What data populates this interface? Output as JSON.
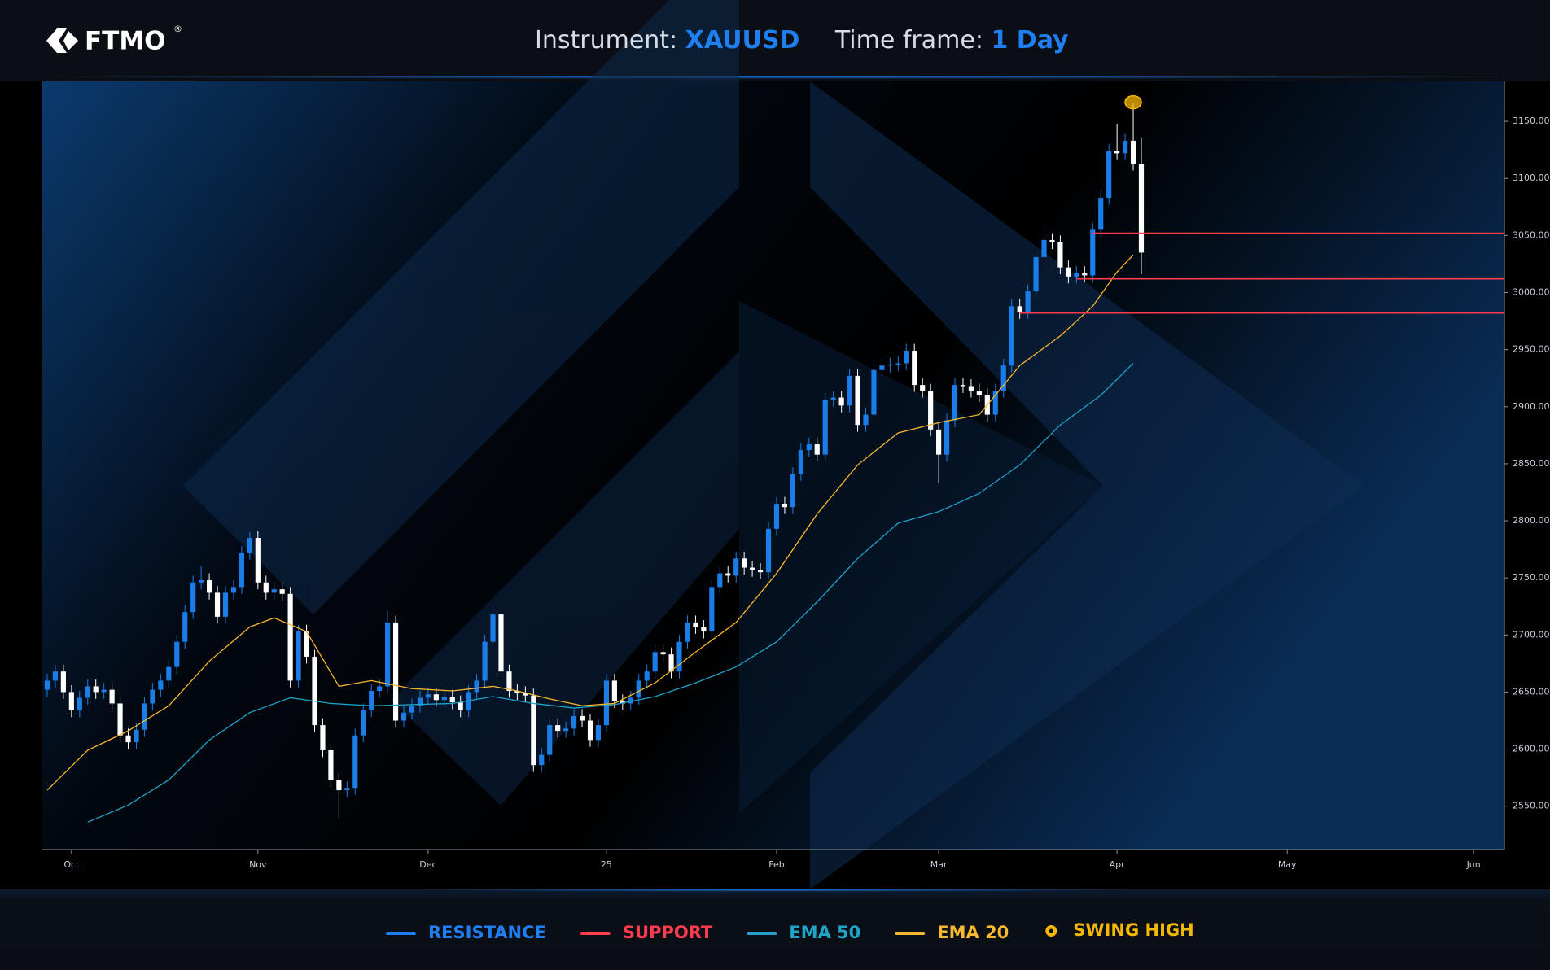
{
  "header": {
    "logo": "FTMO",
    "trademark": "®",
    "instrument_label": "Instrument: ",
    "instrument": "XAUUSD",
    "timeframe_label": "Time frame: ",
    "timeframe": "1 Day"
  },
  "chart_data": {
    "type": "candlestick",
    "up_color": "#1a7de8",
    "down_color": "#ffffff",
    "open": [
      2652,
      2660,
      2668,
      2650,
      2634,
      2645,
      2655,
      2650,
      2652,
      2640,
      2612,
      2606,
      2617,
      2640,
      2652,
      2660,
      2672,
      2694,
      2720,
      2746,
      2748,
      2737,
      2716,
      2737,
      2742,
      2772,
      2785,
      2746,
      2737,
      2740,
      2736,
      2660,
      2703,
      2681,
      2621,
      2599,
      2573,
      2564,
      2566,
      2612,
      2634,
      2651,
      2655,
      2711,
      2625,
      2632,
      2638,
      2645,
      2648,
      2643,
      2646,
      2641,
      2634,
      2650,
      2660,
      2694,
      2718,
      2668,
      2651,
      2649,
      2647,
      2586,
      2595,
      2621,
      2616,
      2618,
      2629,
      2625,
      2608,
      2621,
      2660,
      2642,
      2640,
      2645,
      2660,
      2668,
      2685,
      2683,
      2668,
      2694,
      2711,
      2707,
      2703,
      2742,
      2754,
      2752,
      2767,
      2759,
      2757,
      2755,
      2793,
      2815,
      2812,
      2841,
      2862,
      2867,
      2858,
      2906,
      2908,
      2901,
      2927,
      2884,
      2893,
      2932,
      2936,
      2937,
      2938,
      2949,
      2919,
      2914,
      2880,
      2858,
      2888,
      2919,
      2918,
      2914,
      2910,
      2893,
      2914,
      2936,
      2988,
      2983,
      3001,
      3031,
      3046,
      3044,
      3022,
      3014,
      3017,
      3015,
      3055,
      3083,
      3124,
      3122,
      3133,
      3113
    ],
    "high": [
      2666,
      2674,
      2674,
      2656,
      2651,
      2661,
      2661,
      2658,
      2658,
      2646,
      2618,
      2623,
      2646,
      2658,
      2666,
      2678,
      2700,
      2726,
      2752,
      2760,
      2754,
      2743,
      2743,
      2748,
      2778,
      2790,
      2791,
      2752,
      2746,
      2746,
      2742,
      2709,
      2709,
      2687,
      2627,
      2605,
      2579,
      2572,
      2618,
      2640,
      2657,
      2661,
      2721,
      2717,
      2638,
      2644,
      2651,
      2654,
      2654,
      2652,
      2652,
      2647,
      2656,
      2666,
      2700,
      2726,
      2724,
      2674,
      2657,
      2655,
      2653,
      2601,
      2627,
      2627,
      2624,
      2635,
      2635,
      2631,
      2627,
      2666,
      2666,
      2648,
      2651,
      2666,
      2674,
      2691,
      2691,
      2689,
      2700,
      2717,
      2717,
      2713,
      2748,
      2760,
      2760,
      2773,
      2773,
      2765,
      2763,
      2799,
      2821,
      2821,
      2847,
      2868,
      2873,
      2873,
      2912,
      2914,
      2914,
      2933,
      2933,
      2899,
      2938,
      2942,
      2943,
      2944,
      2955,
      2955,
      2925,
      2920,
      2886,
      2894,
      2925,
      2925,
      2924,
      2920,
      2916,
      2920,
      2942,
      2994,
      2994,
      3007,
      3037,
      3057,
      3052,
      3050,
      3028,
      3023,
      3023,
      3061,
      3089,
      3130,
      3148,
      3139,
      3166,
      3136
    ],
    "low": [
      2646,
      2654,
      2644,
      2628,
      2628,
      2639,
      2644,
      2644,
      2634,
      2606,
      2600,
      2600,
      2611,
      2634,
      2646,
      2654,
      2666,
      2688,
      2714,
      2740,
      2731,
      2710,
      2710,
      2731,
      2736,
      2766,
      2740,
      2731,
      2731,
      2730,
      2654,
      2654,
      2675,
      2615,
      2593,
      2567,
      2540,
      2558,
      2560,
      2606,
      2628,
      2645,
      2649,
      2619,
      2619,
      2626,
      2632,
      2639,
      2637,
      2637,
      2635,
      2628,
      2628,
      2644,
      2654,
      2688,
      2662,
      2645,
      2643,
      2641,
      2580,
      2580,
      2589,
      2610,
      2610,
      2612,
      2619,
      2602,
      2602,
      2615,
      2636,
      2634,
      2634,
      2639,
      2654,
      2662,
      2677,
      2662,
      2662,
      2688,
      2701,
      2697,
      2697,
      2736,
      2746,
      2746,
      2753,
      2751,
      2749,
      2749,
      2787,
      2806,
      2806,
      2835,
      2856,
      2852,
      2852,
      2900,
      2895,
      2895,
      2878,
      2878,
      2887,
      2926,
      2930,
      2931,
      2932,
      2913,
      2908,
      2874,
      2833,
      2852,
      2882,
      2912,
      2908,
      2904,
      2887,
      2887,
      2908,
      2930,
      2977,
      2977,
      2995,
      3025,
      3038,
      3016,
      3008,
      3008,
      3009,
      3009,
      3049,
      3077,
      3116,
      3116,
      3107,
      3016
    ],
    "close": [
      2660,
      2668,
      2650,
      2634,
      2645,
      2655,
      2650,
      2652,
      2640,
      2612,
      2606,
      2617,
      2640,
      2652,
      2660,
      2672,
      2694,
      2720,
      2746,
      2748,
      2737,
      2716,
      2737,
      2742,
      2772,
      2785,
      2746,
      2737,
      2740,
      2736,
      2660,
      2703,
      2681,
      2621,
      2599,
      2573,
      2564,
      2566,
      2612,
      2634,
      2651,
      2655,
      2711,
      2625,
      2632,
      2638,
      2645,
      2648,
      2643,
      2646,
      2641,
      2634,
      2650,
      2660,
      2694,
      2718,
      2668,
      2651,
      2649,
      2647,
      2586,
      2595,
      2621,
      2616,
      2618,
      2629,
      2625,
      2608,
      2621,
      2660,
      2642,
      2640,
      2645,
      2660,
      2668,
      2685,
      2683,
      2668,
      2694,
      2711,
      2707,
      2703,
      2742,
      2754,
      2752,
      2767,
      2759,
      2757,
      2755,
      2793,
      2815,
      2812,
      2841,
      2862,
      2867,
      2858,
      2906,
      2908,
      2901,
      2927,
      2884,
      2893,
      2932,
      2936,
      2937,
      2938,
      2949,
      2919,
      2914,
      2880,
      2858,
      2888,
      2919,
      2918,
      2914,
      2910,
      2893,
      2914,
      2936,
      2988,
      2983,
      3001,
      3031,
      3046,
      3044,
      3022,
      3014,
      3017,
      3015,
      3055,
      3083,
      3124,
      3122,
      3133,
      3113,
      3035
    ],
    "lines": [
      {
        "name": "EMA 50",
        "color": "#1fa3c7",
        "x": [
          5,
          10,
          15,
          20,
          25,
          30,
          35,
          40,
          45,
          50,
          55,
          60,
          65,
          70,
          75,
          80,
          85,
          90,
          95,
          100,
          105,
          110,
          115,
          120,
          125,
          130,
          134
        ],
        "values": [
          2536,
          2551,
          2573,
          2608,
          2632,
          2645,
          2640,
          2638,
          2639,
          2640,
          2646,
          2640,
          2636,
          2639,
          2646,
          2658,
          2672,
          2694,
          2729,
          2767,
          2798,
          2808,
          2824,
          2849,
          2884,
          2910,
          2938
        ]
      },
      {
        "name": "EMA 20",
        "color": "#f5b82e",
        "x": [
          0,
          5,
          10,
          15,
          20,
          25,
          28,
          32,
          36,
          40,
          45,
          50,
          55,
          58,
          62,
          66,
          70,
          75,
          80,
          85,
          90,
          95,
          100,
          105,
          110,
          115,
          120,
          125,
          129,
          132,
          134
        ],
        "values": [
          2564,
          2599,
          2616,
          2638,
          2677,
          2707,
          2715,
          2703,
          2655,
          2660,
          2653,
          2651,
          2655,
          2651,
          2644,
          2638,
          2640,
          2658,
          2685,
          2711,
          2754,
          2806,
          2849,
          2877,
          2886,
          2893,
          2936,
          2962,
          2988,
          3018,
          3033
        ]
      }
    ],
    "resistance": {
      "name": "RESISTANCE",
      "color": "#1e7ff0"
    },
    "support": {
      "name": "SUPPORT",
      "color": "#ff3b4e",
      "levels": [
        {
          "value": 3052,
          "x": 129
        },
        {
          "value": 3012,
          "x": 127
        },
        {
          "value": 2982,
          "x": 120
        }
      ]
    },
    "swing_high": {
      "name": "SWING HIGH",
      "color": "#f5b800",
      "x": 134,
      "value": 3166
    },
    "ylim": [
      2512,
      3185
    ],
    "yticks": [
      {
        "value": 2550,
        "label": "2550.00"
      },
      {
        "value": 2600,
        "label": "2600.00"
      },
      {
        "value": 2650,
        "label": "2650.00"
      },
      {
        "value": 2700,
        "label": "2700.00"
      },
      {
        "value": 2750,
        "label": "2750.00"
      },
      {
        "value": 2800,
        "label": "2800.00"
      },
      {
        "value": 2850,
        "label": "2850.00"
      },
      {
        "value": 2900,
        "label": "2900.00"
      },
      {
        "value": 2950,
        "label": "2950.00"
      },
      {
        "value": 3000,
        "label": "3000.00"
      },
      {
        "value": 3050,
        "label": "3050.00"
      },
      {
        "value": 3100,
        "label": "3100.00"
      },
      {
        "value": 3150,
        "label": "3150.00"
      }
    ],
    "xlim": [
      -0.6,
      179.8
    ],
    "xticks": [
      {
        "value": 3,
        "label": "Oct"
      },
      {
        "value": 26,
        "label": "Nov"
      },
      {
        "value": 47,
        "label": "Dec"
      },
      {
        "value": 69,
        "label": "25"
      },
      {
        "value": 90,
        "label": "Feb"
      },
      {
        "value": 110,
        "label": "Mar"
      },
      {
        "value": 132,
        "label": "Apr"
      },
      {
        "value": 153,
        "label": "May"
      },
      {
        "value": 176,
        "label": "Jun"
      }
    ],
    "grid": false
  }
}
